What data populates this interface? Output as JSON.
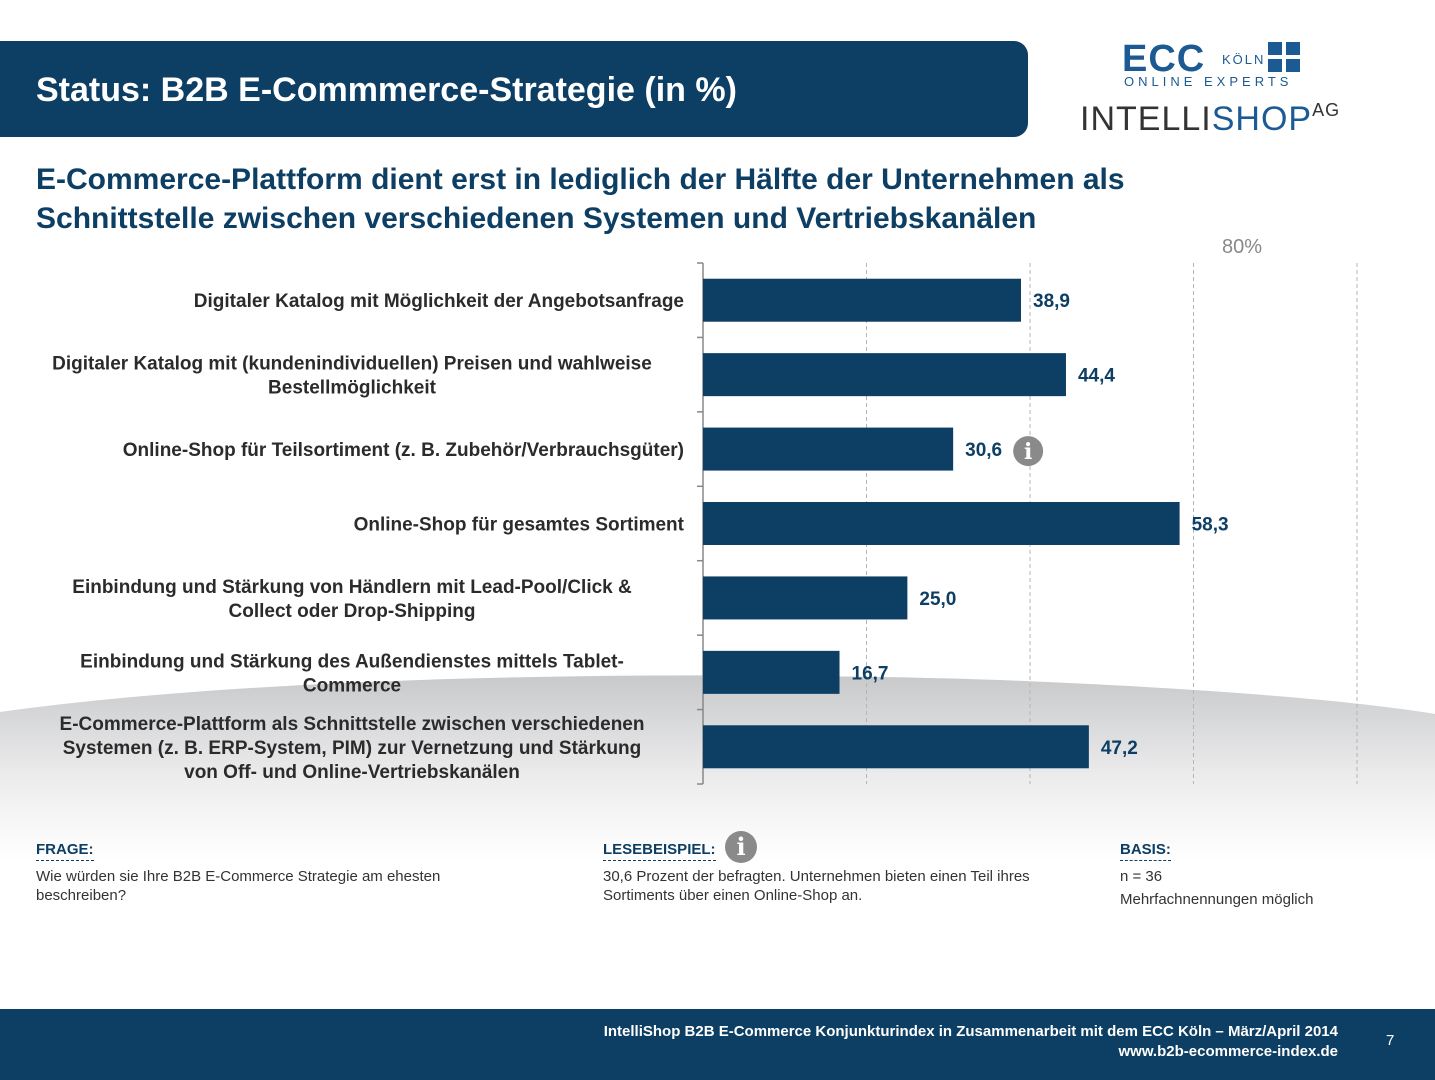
{
  "header": {
    "title": "Status: B2B E-Commmerce-Strategie (in %)"
  },
  "logos": {
    "ecc_main": "ECC",
    "ecc_koeln": "KÖLN",
    "ecc_sub": "ONLINE EXPERTS",
    "intelli_a": "INTELLI",
    "intelli_b": "SHOP",
    "intelli_ag": "AG"
  },
  "subtitle": {
    "line1": "E-Commerce-Plattform dient erst in lediglich der Hälfte der Unternehmen als",
    "line2": "Schnittstelle zwischen verschiedenen Systemen und Vertriebskanälen"
  },
  "chart_data": {
    "type": "bar",
    "orientation": "horizontal",
    "categories": [
      [
        "Digitaler Katalog mit Möglichkeit der Angebotsanfrage"
      ],
      [
        "Digitaler Katalog mit (kundenindividuellen) Preisen und wahlweise",
        "Bestellmöglichkeit"
      ],
      [
        "Online-Shop für Teilsortiment (z. B. Zubehör/Verbrauchsgüter)"
      ],
      [
        "Online-Shop für gesamtes Sortiment"
      ],
      [
        "Einbindung und Stärkung von Händlern mit Lead-Pool/Click &",
        "Collect oder Drop-Shipping"
      ],
      [
        "Einbindung und Stärkung des Außendienstes mittels Tablet-",
        "Commerce"
      ],
      [
        "E-Commerce-Plattform als Schnittstelle zwischen verschiedenen",
        "Systemen (z. B. ERP-System, PIM) zur Vernetzung und Stärkung",
        "von Off- und Online-Vertriebskanälen"
      ]
    ],
    "values": [
      38.9,
      44.4,
      30.6,
      58.3,
      25.0,
      16.7,
      47.2
    ],
    "value_labels": [
      "38,9",
      "44,4",
      "30,6",
      "58,3",
      "25,0",
      "16,7",
      "47,2"
    ],
    "axis_max_label": "80%",
    "xlim": [
      0,
      80
    ],
    "gridlines": [
      20,
      40,
      60,
      80
    ],
    "grid": true,
    "bar_color": "#0d3e64",
    "info_marker_index": 2
  },
  "notes": {
    "frage_head": "FRAGE:",
    "frage_body": "Wie würden sie Ihre  B2B E-Commerce Strategie am ehesten beschreiben?",
    "lese_head": "LESEBEISPIEL:",
    "lese_body": "30,6 Prozent  der befragten. Unternehmen  bieten einen Teil ihres Sortiments  über einen Online-Shop  an.",
    "basis_head": "BASIS:",
    "basis_line1": "n = 36",
    "basis_line2": "Mehrfachnennungen  möglich"
  },
  "footer": {
    "line1": "IntelliShop  B2B E-Commerce Konjunkturindex in Zusammenarbeit mit dem ECC Köln –  März/April 2014",
    "line2": "www.b2b-ecommerce-index.de",
    "page": "7"
  }
}
